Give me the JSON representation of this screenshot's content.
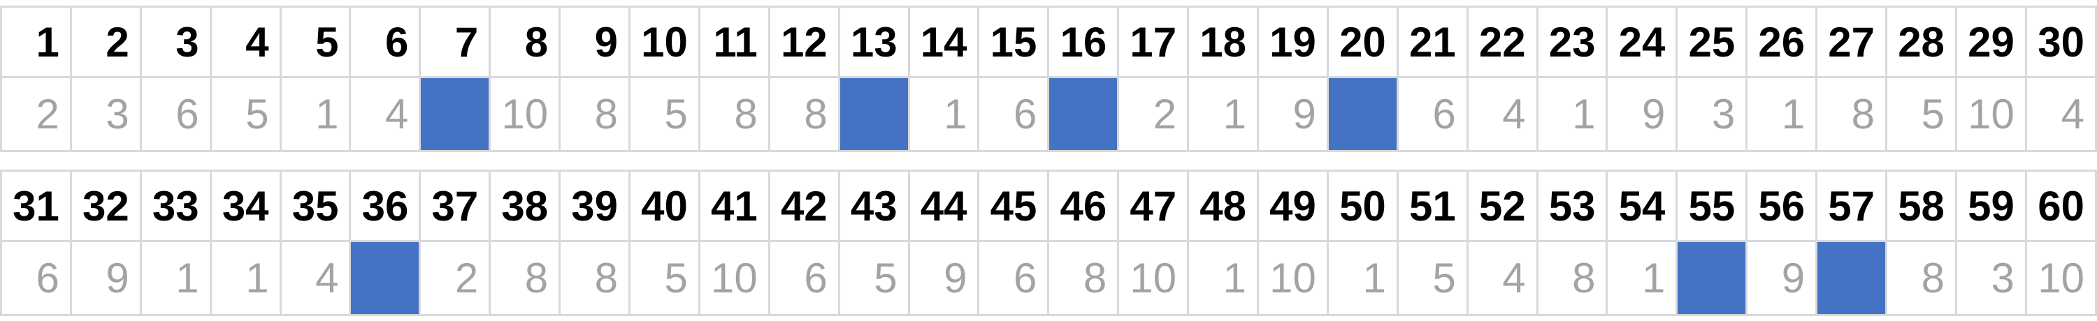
{
  "colors": {
    "fill_blue": "#4472C4",
    "header_text": "#000000",
    "value_text": "#A3A3A3",
    "border": "#D9D9D9",
    "background": "#FFFFFF"
  },
  "chart_data": {
    "type": "table",
    "description": "Two-row number grid blocks: top row is the index 1-60, bottom row is a value 1-10; filled cells are solid blue with no visible value",
    "blocks": [
      {
        "headers": [
          "1",
          "2",
          "3",
          "4",
          "5",
          "6",
          "7",
          "8",
          "9",
          "10",
          "11",
          "12",
          "13",
          "14",
          "15",
          "16",
          "17",
          "18",
          "19",
          "20",
          "21",
          "22",
          "23",
          "24",
          "25",
          "26",
          "27",
          "28",
          "29",
          "30"
        ],
        "values": [
          "2",
          "3",
          "6",
          "5",
          "1",
          "4",
          "",
          "10",
          "8",
          "5",
          "8",
          "8",
          "",
          "1",
          "6",
          "",
          "2",
          "1",
          "9",
          "",
          "6",
          "4",
          "1",
          "9",
          "3",
          "1",
          "8",
          "5",
          "10",
          "4"
        ],
        "filled_indices": [
          "7",
          "13",
          "16",
          "20"
        ]
      },
      {
        "headers": [
          "31",
          "32",
          "33",
          "34",
          "35",
          "36",
          "37",
          "38",
          "39",
          "40",
          "41",
          "42",
          "43",
          "44",
          "45",
          "46",
          "47",
          "48",
          "49",
          "50",
          "51",
          "52",
          "53",
          "54",
          "55",
          "56",
          "57",
          "58",
          "59",
          "60"
        ],
        "values": [
          "6",
          "9",
          "1",
          "1",
          "4",
          "",
          "2",
          "8",
          "8",
          "5",
          "10",
          "6",
          "5",
          "9",
          "6",
          "8",
          "10",
          "1",
          "10",
          "1",
          "5",
          "4",
          "8",
          "1",
          "",
          "9",
          "",
          "8",
          "3",
          "10"
        ],
        "filled_indices": [
          "36",
          "55",
          "57"
        ]
      }
    ]
  }
}
